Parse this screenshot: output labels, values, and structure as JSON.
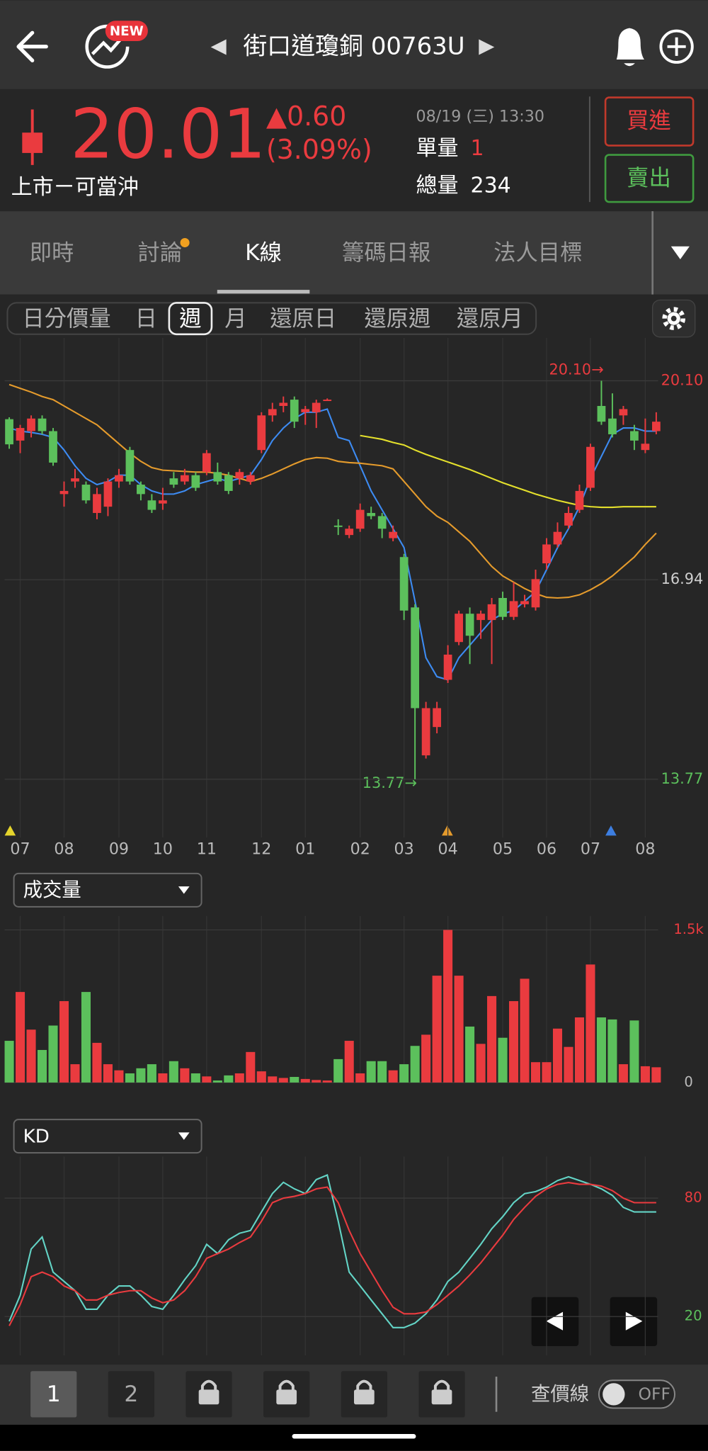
{
  "header": {
    "title": "街口道瓊銅 00763U",
    "prev": "◀",
    "next": "▶",
    "badge": "NEW"
  },
  "quote": {
    "price": "20.01",
    "change": "▲0.60",
    "change_pct": "(3.09%)",
    "market": "上市ㄧ可當沖",
    "time": "08/19 (三) 13:30",
    "unit_volume_label": "單量",
    "unit_volume": "1",
    "total_volume_label": "總量",
    "total_volume": "234"
  },
  "buttons": {
    "buy": "買進",
    "sell": "賣出"
  },
  "tabs": {
    "items": [
      "即時",
      "討論",
      "K線",
      "籌碼日報",
      "法人目標"
    ],
    "selected": "K線"
  },
  "periods": {
    "items": [
      "日分價量",
      "日",
      "週",
      "月",
      "還原日",
      "還原週",
      "還原月"
    ],
    "selected": "週"
  },
  "kline": {
    "type": "candlestick",
    "categories": [
      null,
      "07",
      null,
      null,
      null,
      "08",
      null,
      null,
      null,
      null,
      "09",
      null,
      null,
      null,
      "10",
      null,
      null,
      null,
      "11",
      null,
      null,
      null,
      null,
      "12",
      null,
      null,
      null,
      "01",
      null,
      null,
      null,
      null,
      "02",
      null,
      null,
      null,
      "03",
      null,
      null,
      null,
      "04",
      null,
      null,
      null,
      null,
      "05",
      null,
      null,
      null,
      "06",
      null,
      null,
      null,
      "07",
      null,
      null,
      null,
      null,
      "08",
      null
    ],
    "candles": [
      [
        19.49,
        19.52,
        19.02,
        19.09
      ],
      [
        19.15,
        19.4,
        18.95,
        19.35
      ],
      [
        19.3,
        19.55,
        19.2,
        19.5
      ],
      [
        19.5,
        19.55,
        19.25,
        19.3
      ],
      [
        19.3,
        19.35,
        18.75,
        18.8
      ],
      [
        18.3,
        18.5,
        18.1,
        18.35
      ],
      [
        18.5,
        18.7,
        18.4,
        18.55
      ],
      [
        18.45,
        18.5,
        18.15,
        18.2
      ],
      [
        18.0,
        18.4,
        17.9,
        18.3
      ],
      [
        18.1,
        18.55,
        17.95,
        18.5
      ],
      [
        18.5,
        18.7,
        18.4,
        18.6
      ],
      [
        19.0,
        19.05,
        18.45,
        18.5
      ],
      [
        18.45,
        18.5,
        18.2,
        18.3
      ],
      [
        18.2,
        18.3,
        18.0,
        18.05
      ],
      [
        18.15,
        18.4,
        18.05,
        18.2
      ],
      [
        18.55,
        18.65,
        18.4,
        18.45
      ],
      [
        18.5,
        18.7,
        18.45,
        18.6
      ],
      [
        18.6,
        18.65,
        18.35,
        18.4
      ],
      [
        18.65,
        19.0,
        18.6,
        18.95
      ],
      [
        18.65,
        18.8,
        18.45,
        18.5
      ],
      [
        18.6,
        18.65,
        18.3,
        18.35
      ],
      [
        18.55,
        18.7,
        18.45,
        18.65
      ],
      [
        18.5,
        18.65,
        18.45,
        18.6
      ],
      [
        19.0,
        19.6,
        18.95,
        19.55
      ],
      [
        19.55,
        19.75,
        19.45,
        19.65
      ],
      [
        19.7,
        19.85,
        19.6,
        19.75
      ],
      [
        19.8,
        19.85,
        19.35,
        19.45
      ],
      [
        19.6,
        19.7,
        19.4,
        19.65
      ],
      [
        19.6,
        19.8,
        19.35,
        19.75
      ],
      [
        19.78,
        19.82,
        19.78,
        19.8
      ],
      [
        17.8,
        17.9,
        17.65,
        17.78
      ],
      [
        17.65,
        17.8,
        17.6,
        17.75
      ],
      [
        17.75,
        18.15,
        17.7,
        18.05
      ],
      [
        18.0,
        18.1,
        17.9,
        17.95
      ],
      [
        17.95,
        18.0,
        17.6,
        17.75
      ],
      [
        17.6,
        17.8,
        17.55,
        17.7
      ],
      [
        17.3,
        17.35,
        16.3,
        16.45
      ],
      [
        16.5,
        16.55,
        13.77,
        14.9
      ],
      [
        14.15,
        15.0,
        14.1,
        14.9
      ],
      [
        14.6,
        15.0,
        14.5,
        14.9
      ],
      [
        15.35,
        15.9,
        15.3,
        15.75
      ],
      [
        15.95,
        16.45,
        15.9,
        16.4
      ],
      [
        16.4,
        16.5,
        15.6,
        16.05
      ],
      [
        16.3,
        16.45,
        16.0,
        16.4
      ],
      [
        16.3,
        16.65,
        15.6,
        16.55
      ],
      [
        16.65,
        16.75,
        16.3,
        16.35
      ],
      [
        16.35,
        16.9,
        16.3,
        16.6
      ],
      [
        16.55,
        16.7,
        16.5,
        16.6
      ],
      [
        16.5,
        17.1,
        16.45,
        16.95
      ],
      [
        17.2,
        17.6,
        17.1,
        17.5
      ],
      [
        17.5,
        17.85,
        17.45,
        17.7
      ],
      [
        17.8,
        18.1,
        17.75,
        18.0
      ],
      [
        18.05,
        18.45,
        18.0,
        18.35
      ],
      [
        18.4,
        19.1,
        18.35,
        19.05
      ],
      [
        19.7,
        20.1,
        19.4,
        19.45
      ],
      [
        19.5,
        19.9,
        19.2,
        19.25
      ],
      [
        19.55,
        19.7,
        19.4,
        19.65
      ],
      [
        19.3,
        19.4,
        19.0,
        19.15
      ],
      [
        19.0,
        19.5,
        18.95,
        19.1
      ],
      [
        19.3,
        19.6,
        19.25,
        19.45
      ]
    ],
    "up_color": "#ea3b3f",
    "down_color": "#5cc05c",
    "ma": [
      {
        "color": "#3d8bf2",
        "values": [
          19.35,
          19.3,
          19.28,
          19.25,
          19.2,
          19.0,
          18.75,
          18.55,
          18.45,
          18.5,
          18.6,
          18.6,
          18.45,
          18.35,
          18.3,
          18.3,
          18.35,
          18.45,
          18.5,
          18.55,
          18.5,
          18.55,
          18.6,
          18.85,
          19.15,
          19.35,
          19.5,
          19.6,
          19.6,
          19.65,
          19.2,
          19.15,
          18.75,
          18.35,
          18.05,
          17.75,
          17.45,
          16.6,
          15.7,
          15.4,
          15.35,
          15.7,
          15.9,
          16.1,
          16.3,
          16.4,
          16.45,
          16.6,
          16.75,
          17.1,
          17.45,
          17.75,
          18.1,
          18.55,
          18.9,
          19.25,
          19.35,
          19.35,
          19.3,
          19.3
        ]
      },
      {
        "color": "#e59b2c",
        "values": [
          20.04,
          19.98,
          19.92,
          19.85,
          19.8,
          19.7,
          19.6,
          19.5,
          19.4,
          19.25,
          19.1,
          18.95,
          18.82,
          18.72,
          18.68,
          18.67,
          18.66,
          18.65,
          18.65,
          18.63,
          18.6,
          18.55,
          18.5,
          18.55,
          18.62,
          18.7,
          18.78,
          18.85,
          18.88,
          18.87,
          18.82,
          18.8,
          18.79,
          18.77,
          18.75,
          18.7,
          18.5,
          18.3,
          18.1,
          17.95,
          17.85,
          17.7,
          17.55,
          17.35,
          17.15,
          17.0,
          16.9,
          16.8,
          16.72,
          16.66,
          16.65,
          16.66,
          16.7,
          16.78,
          16.88,
          17.0,
          17.15,
          17.3,
          17.5,
          17.68
        ]
      },
      {
        "color": "#e4e02c",
        "values": [
          null,
          null,
          null,
          null,
          null,
          null,
          null,
          null,
          null,
          null,
          null,
          null,
          null,
          null,
          null,
          null,
          null,
          null,
          null,
          null,
          null,
          null,
          null,
          null,
          null,
          null,
          null,
          null,
          null,
          null,
          null,
          null,
          19.23,
          19.2,
          19.17,
          19.12,
          19.08,
          19.0,
          18.93,
          18.87,
          18.81,
          18.75,
          18.69,
          18.62,
          18.55,
          18.48,
          18.42,
          18.36,
          18.3,
          18.25,
          18.2,
          18.16,
          18.12,
          18.1,
          18.09,
          18.09,
          18.1,
          18.1,
          18.1,
          18.1
        ]
      }
    ],
    "ylim": [
      12.92,
      20.78
    ],
    "yticks": [
      {
        "value": 20.1,
        "label": "20.10"
      },
      16.94,
      13.77
    ],
    "high_annotation": "20.10→",
    "low_annotation": "13.77→",
    "grid": true
  },
  "volume": {
    "type": "bar",
    "selector": "成交量",
    "values": [
      410,
      890,
      520,
      320,
      560,
      800,
      180,
      890,
      390,
      180,
      120,
      90,
      140,
      180,
      90,
      210,
      140,
      90,
      60,
      20,
      70,
      90,
      300,
      110,
      60,
      45,
      55,
      35,
      25,
      20,
      230,
      410,
      90,
      210,
      210,
      120,
      180,
      360,
      470,
      1050,
      1500,
      1050,
      550,
      380,
      850,
      440,
      800,
      1020,
      200,
      200,
      530,
      350,
      640,
      1160,
      640,
      620,
      180,
      610,
      160,
      150
    ],
    "ylim": [
      0,
      1500
    ],
    "yticks": [
      {
        "value": 1500,
        "label": "1.5k"
      },
      0
    ],
    "grid": true
  },
  "kd": {
    "type": "line",
    "selector": "KD",
    "series": [
      {
        "color": "#63d4c6",
        "values": [
          17.6,
          30.8,
          54.2,
          60.3,
          42.5,
          37.8,
          33.1,
          23.7,
          23.7,
          30.8,
          35.5,
          35.5,
          30.8,
          25.1,
          23.7,
          30.8,
          38.7,
          45.8,
          56.6,
          51.9,
          58.9,
          62.2,
          63.6,
          73.0,
          82.3,
          88.0,
          84.7,
          82.3,
          89.4,
          91.7,
          68.3,
          42.5,
          35.5,
          28.4,
          21.4,
          14.4,
          14.4,
          16.7,
          21.4,
          28.4,
          37.8,
          42.5,
          49.5,
          56.6,
          64.5,
          70.6,
          77.7,
          82.3,
          83.3,
          85.6,
          88.9,
          90.8,
          88.9,
          87.0,
          84.7,
          81.4,
          75.3,
          73.0,
          73.0,
          73.0
        ]
      },
      {
        "color": "#ea3b3f",
        "values": [
          15.3,
          26.1,
          40.2,
          42.5,
          40.2,
          35.5,
          33.1,
          28.4,
          28.4,
          30.8,
          32.2,
          33.1,
          33.1,
          29.4,
          27.0,
          28.4,
          33.1,
          40.2,
          49.5,
          51.9,
          54.2,
          57.5,
          60.3,
          68.3,
          77.7,
          80.0,
          80.9,
          82.3,
          84.7,
          85.6,
          77.7,
          63.6,
          51.9,
          42.5,
          33.1,
          24.7,
          21.4,
          21.4,
          22.3,
          26.1,
          30.8,
          35.5,
          41.1,
          47.2,
          54.2,
          61.2,
          69.2,
          75.3,
          80.9,
          84.7,
          87.0,
          87.9,
          87.0,
          87.0,
          86.1,
          83.8,
          80.0,
          77.7,
          77.7,
          77.7
        ]
      }
    ],
    "ylim": [
      0,
      100
    ],
    "yticks": [
      80,
      20
    ],
    "grid": true
  },
  "footer": {
    "pages": [
      "1",
      "2"
    ],
    "selected": "1",
    "price_line_label": "查價線",
    "toggle": "OFF"
  }
}
